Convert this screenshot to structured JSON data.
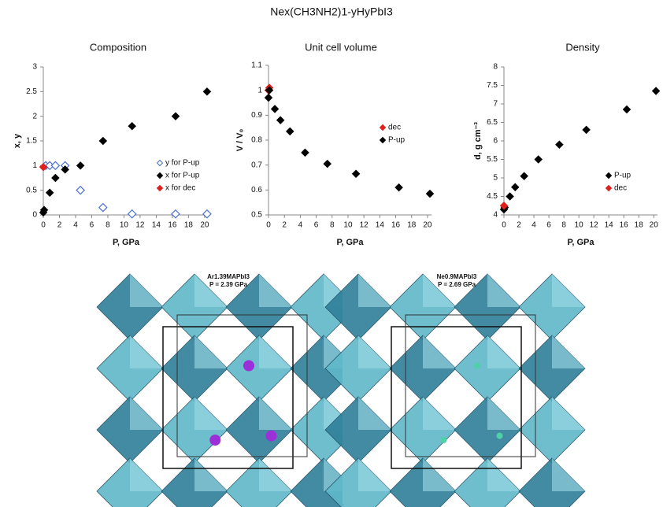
{
  "title": "Nex(CH3NH2)1-yHyPbI3",
  "chart_data": [
    {
      "type": "scatter",
      "title": "Composition",
      "x_label": "P, GPa",
      "y_label": "x, y",
      "xlim": [
        0,
        20.5
      ],
      "ylim": [
        0,
        3
      ],
      "xticks": [
        0,
        2,
        4,
        6,
        8,
        10,
        12,
        14,
        16,
        18,
        20
      ],
      "yticks": [
        0,
        0.5,
        1,
        1.5,
        2,
        2.5,
        3
      ],
      "legend": "lower right",
      "series": [
        {
          "name": "y for P-up",
          "color": "#4a6fd1",
          "marker": "open-diamond",
          "x": [
            0.3,
            0.8,
            1.5,
            2.7,
            4.6,
            7.4,
            11,
            16.4,
            20.3
          ],
          "values": [
            1,
            1,
            1,
            1,
            0.5,
            0.15,
            0.02,
            0.02,
            0.02
          ]
        },
        {
          "name": "x for P-up",
          "color": "#000000",
          "marker": "diamond",
          "x": [
            0,
            0.1,
            0.8,
            1.5,
            2.7,
            4.6,
            7.4,
            11,
            16.4,
            20.3
          ],
          "values": [
            0.05,
            0.1,
            0.45,
            0.75,
            0.92,
            1.0,
            1.5,
            1.8,
            2.0,
            2.5
          ]
        },
        {
          "name": "x for dec",
          "color": "#e0201b",
          "marker": "diamond",
          "x": [
            0
          ],
          "values": [
            0.97
          ]
        }
      ]
    },
    {
      "type": "scatter",
      "title": "Unit cell volume",
      "x_label": "P, GPa",
      "y_label": "V / V₀",
      "xlim": [
        0,
        20.5
      ],
      "ylim": [
        0.5,
        1.1
      ],
      "xticks": [
        0,
        2,
        4,
        6,
        8,
        10,
        12,
        14,
        16,
        18,
        20
      ],
      "yticks": [
        0.5,
        0.6,
        0.7,
        0.8,
        0.9,
        1,
        1.1
      ],
      "legend": "center right",
      "series": [
        {
          "name": "dec",
          "color": "#e0201b",
          "marker": "diamond",
          "x": [
            0,
            0.1
          ],
          "values": [
            1.0,
            1.01
          ]
        },
        {
          "name": "P-up",
          "color": "#000000",
          "marker": "diamond",
          "x": [
            0,
            0.1,
            0.8,
            1.5,
            2.7,
            4.6,
            7.4,
            11,
            16.4,
            20.3
          ],
          "values": [
            0.97,
            1.0,
            0.925,
            0.88,
            0.835,
            0.75,
            0.705,
            0.665,
            0.61,
            0.585
          ]
        }
      ]
    },
    {
      "type": "scatter",
      "title": "Density",
      "x_label": "P, GPa",
      "y_label": "d, g cm⁻³",
      "xlim": [
        0,
        20.5
      ],
      "ylim": [
        4,
        8
      ],
      "xticks": [
        0,
        2,
        4,
        6,
        8,
        10,
        12,
        14,
        16,
        18,
        20
      ],
      "yticks": [
        4,
        4.5,
        5,
        5.5,
        6,
        6.5,
        7,
        7.5,
        8
      ],
      "legend": "lower right",
      "series": [
        {
          "name": "P-up",
          "color": "#000000",
          "marker": "diamond",
          "x": [
            0,
            0.1,
            0.8,
            1.5,
            2.7,
            4.6,
            7.4,
            11,
            16.4,
            20.3
          ],
          "values": [
            4.15,
            4.2,
            4.5,
            4.75,
            5.05,
            5.5,
            5.9,
            6.3,
            6.85,
            7.35
          ]
        },
        {
          "name": "dec",
          "color": "#e0201b",
          "marker": "diamond",
          "x": [
            0
          ],
          "values": [
            4.25
          ]
        }
      ]
    }
  ],
  "structures": [
    {
      "formula": "Ar1.39MAPbI3",
      "pressure": "P = 2.39 GPa"
    },
    {
      "formula": "Ne0.9MAPbI3",
      "pressure": "P = 2.69 GPa"
    }
  ]
}
